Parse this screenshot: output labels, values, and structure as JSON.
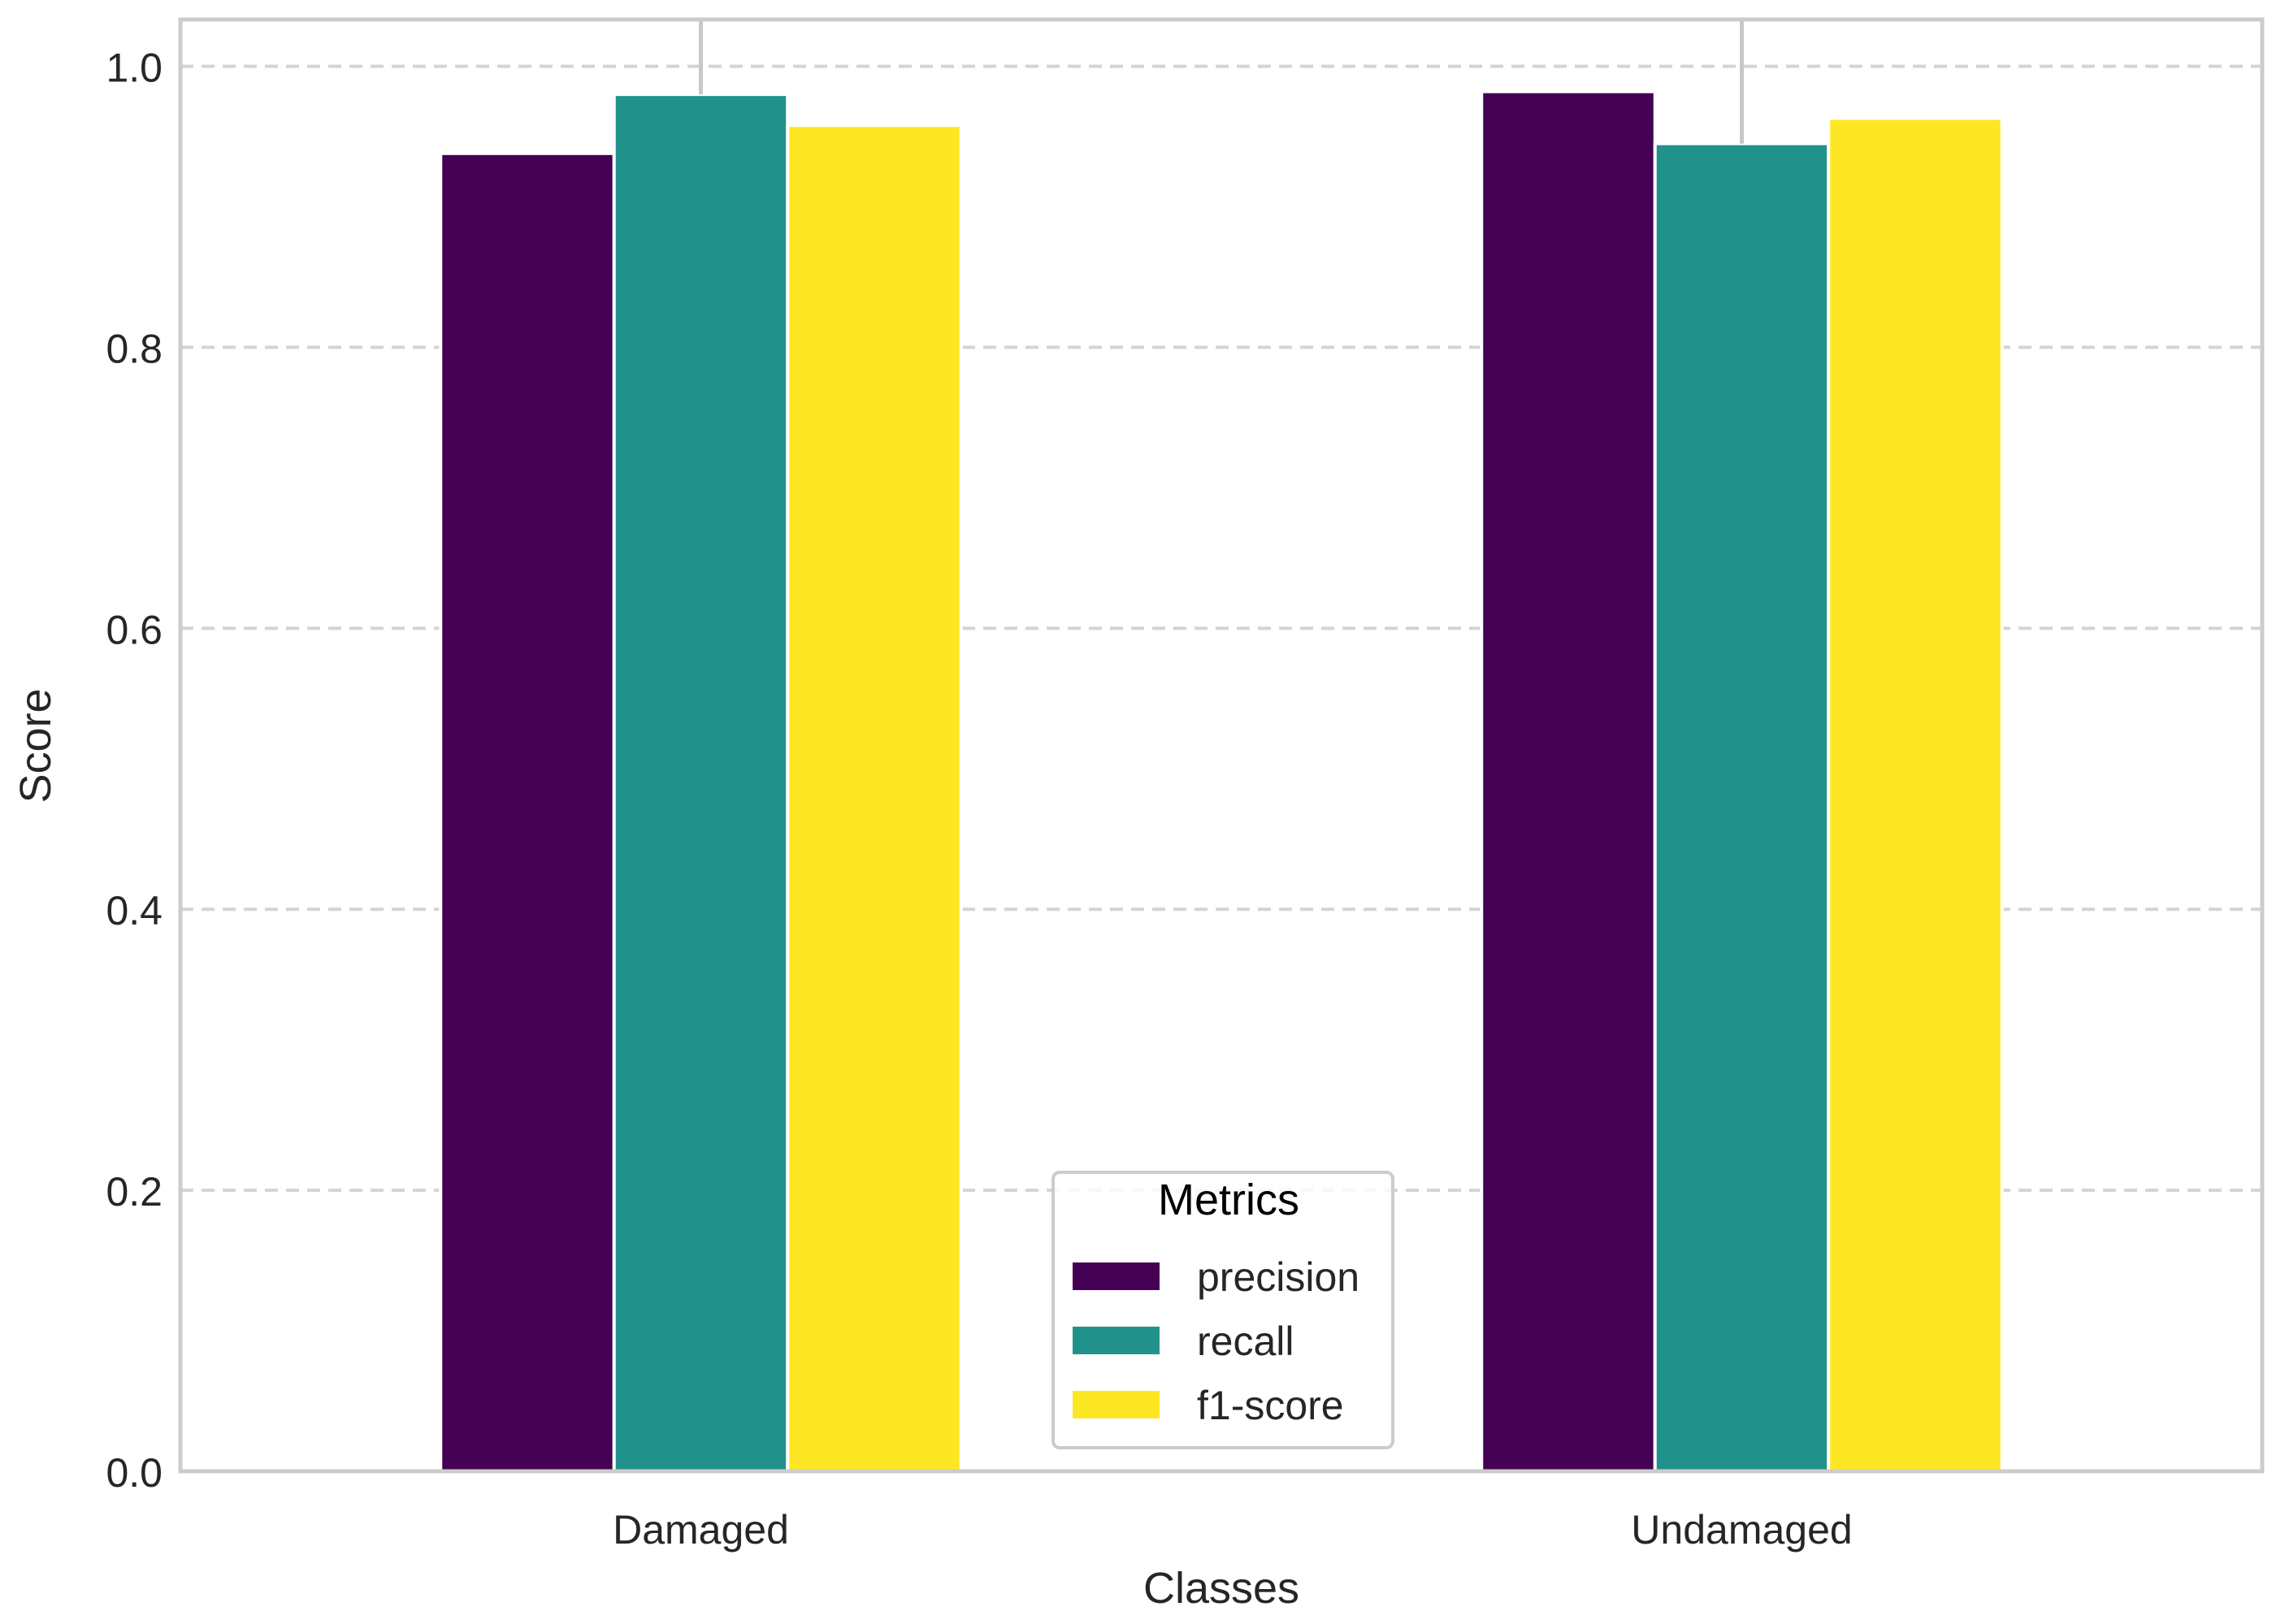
{
  "chart_data": {
    "type": "bar",
    "title": "",
    "xlabel": "Classes",
    "ylabel": "Score",
    "categories": [
      "Damaged",
      "Undamaged"
    ],
    "series": [
      {
        "name": "precision",
        "values": [
          0.938,
          0.982
        ],
        "color": "#440154"
      },
      {
        "name": "recall",
        "values": [
          0.98,
          0.945
        ],
        "color": "#21918c"
      },
      {
        "name": "f1-score",
        "values": [
          0.958,
          0.963
        ],
        "color": "#fde725"
      }
    ],
    "error_bars": [
      {
        "category": "Damaged",
        "low": 0.98,
        "high": 1.033
      },
      {
        "category": "Undamaged",
        "low": 0.945,
        "high": 1.033
      }
    ],
    "ylim": [
      0,
      1.0333
    ],
    "yticks": [
      "0.0",
      "0.2",
      "0.4",
      "0.6",
      "0.8",
      "1.0"
    ],
    "grid": true,
    "legend": {
      "title": "Metrics",
      "placement": "lower center"
    }
  }
}
